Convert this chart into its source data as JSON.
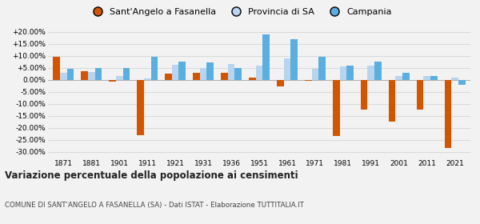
{
  "years": [
    1871,
    1881,
    1901,
    1911,
    1921,
    1931,
    1936,
    1951,
    1961,
    1971,
    1981,
    1991,
    2001,
    2011,
    2021
  ],
  "sant_angelo": [
    9.5,
    3.5,
    -0.8,
    -23.0,
    2.5,
    3.0,
    2.8,
    1.0,
    -2.8,
    -0.5,
    -23.5,
    -12.5,
    -17.5,
    -12.5,
    -28.5
  ],
  "provincia_sa": [
    3.0,
    3.2,
    1.5,
    0.5,
    6.3,
    5.0,
    6.5,
    6.0,
    9.0,
    4.5,
    5.5,
    5.8,
    1.5,
    1.5,
    1.0
  ],
  "campania": [
    4.5,
    5.0,
    5.0,
    9.5,
    7.5,
    7.2,
    5.0,
    19.0,
    17.0,
    9.5,
    6.0,
    7.5,
    3.0,
    1.5,
    -2.0
  ],
  "color_sant": "#d45500",
  "color_prov": "#b8d4ee",
  "color_camp": "#5aafe0",
  "bg_color": "#f2f2f2",
  "grid_color": "#d8d8d8",
  "title": "Variazione percentuale della popolazione ai censimenti",
  "subtitle": "COMUNE DI SANT'ANGELO A FASANELLA (SA) - Dati ISTAT - Elaborazione TUTTITALIA.IT",
  "legend_sant": "Sant'Angelo a Fasanella",
  "legend_prov": "Provincia di SA",
  "legend_camp": "Campania",
  "ylim": [
    -32,
    22
  ],
  "yticks": [
    -30,
    -25,
    -20,
    -15,
    -10,
    -5,
    0,
    5,
    10,
    15,
    20
  ]
}
